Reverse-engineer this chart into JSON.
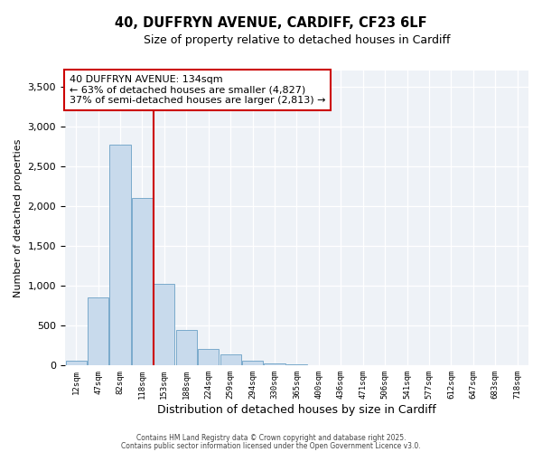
{
  "title": "40, DUFFRYN AVENUE, CARDIFF, CF23 6LF",
  "subtitle": "Size of property relative to detached houses in Cardiff",
  "xlabel": "Distribution of detached houses by size in Cardiff",
  "ylabel": "Number of detached properties",
  "bar_values": [
    60,
    850,
    2775,
    2100,
    1025,
    450,
    210,
    145,
    60,
    30,
    10,
    5,
    2,
    1,
    1,
    0,
    0,
    0,
    0,
    0,
    0
  ],
  "all_labels": [
    "12sqm",
    "47sqm",
    "82sqm",
    "118sqm",
    "153sqm",
    "188sqm",
    "224sqm",
    "259sqm",
    "294sqm",
    "330sqm",
    "365sqm",
    "400sqm",
    "436sqm",
    "471sqm",
    "506sqm",
    "541sqm",
    "577sqm",
    "612sqm",
    "647sqm",
    "683sqm",
    "718sqm"
  ],
  "bar_color_fill": "#c8daec",
  "bar_color_edge": "#7aaacb",
  "vline_x": 3.5,
  "vline_color": "#cc0000",
  "annotation_text": "40 DUFFRYN AVENUE: 134sqm\n← 63% of detached houses are smaller (4,827)\n37% of semi-detached houses are larger (2,813) →",
  "annotation_box_color": "#ffffff",
  "annotation_box_edge": "#cc0000",
  "ylim": [
    0,
    3700
  ],
  "yticks": [
    0,
    500,
    1000,
    1500,
    2000,
    2500,
    3000,
    3500
  ],
  "footer1": "Contains HM Land Registry data © Crown copyright and database right 2025.",
  "footer2": "Contains public sector information licensed under the Open Government Licence v3.0.",
  "bg_color": "#eef2f7"
}
